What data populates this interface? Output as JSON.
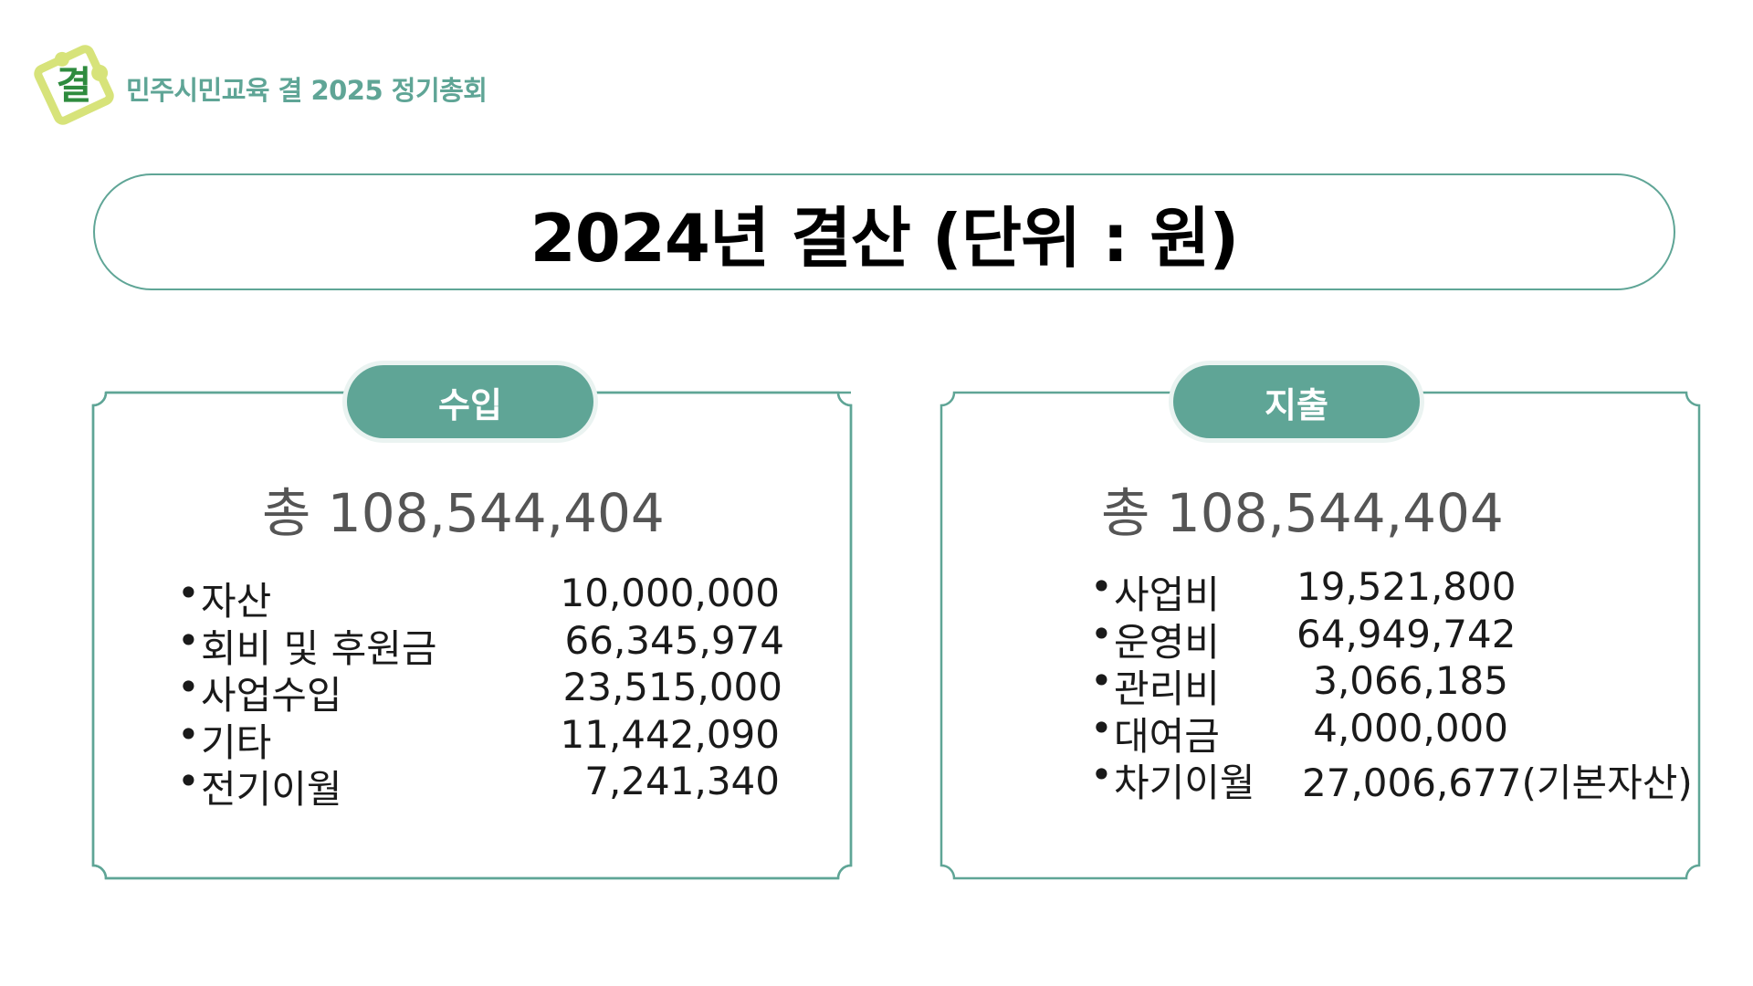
{
  "header": {
    "logo_char": "결",
    "org_title": "민주시민교육 결 2025 정기총회"
  },
  "title": "2024년 결산 (단위 : 원)",
  "income": {
    "tab_label": "수입",
    "total": "총 108,544,404",
    "items": [
      {
        "label": "자산",
        "amount": "10,000,000"
      },
      {
        "label": "회비 및 후원금",
        "amount": "66,345,974"
      },
      {
        "label": "사업수입",
        "amount": "23,515,000"
      },
      {
        "label": "기타",
        "amount": "11,442,090"
      },
      {
        "label": "전기이월",
        "amount": "7,241,340"
      }
    ]
  },
  "expense": {
    "tab_label": "지출",
    "total": "총  108,544,404",
    "items": [
      {
        "label": "사업비",
        "amount": "19,521,800"
      },
      {
        "label": "운영비",
        "amount": "64,949,742"
      },
      {
        "label": "관리비",
        "amount": "3,066,185"
      },
      {
        "label": "대여금",
        "amount": "4,000,000"
      },
      {
        "label": "차기이월",
        "amount": "27,006,677(기본자산)"
      }
    ]
  },
  "colors": {
    "accent": "#5fa596",
    "logo_green": "#2e8b3e",
    "logo_yellow": "#d7e37a"
  }
}
